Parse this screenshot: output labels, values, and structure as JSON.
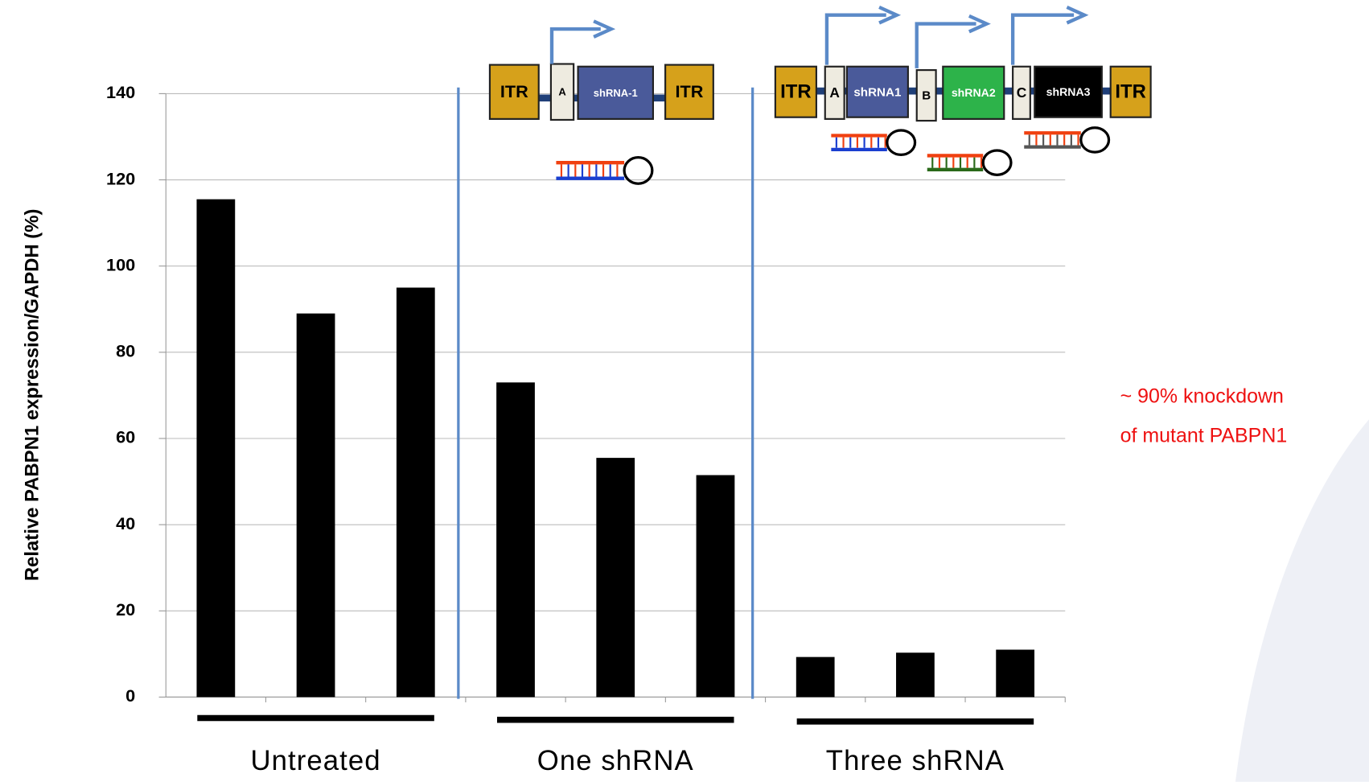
{
  "chart_data": {
    "type": "bar",
    "y_label": "Relative PABPN1 expression/GAPDH (%)",
    "categories": [
      null,
      null,
      null,
      null,
      null,
      null,
      null,
      null,
      null
    ],
    "values": [
      115.5,
      89,
      95,
      73,
      55.5,
      51.5,
      9.3,
      10.3,
      11
    ],
    "color": "#000000",
    "groups": [
      "Untreated",
      "One shRNA",
      "Three shRNA"
    ],
    "ylim": [
      0,
      140
    ],
    "yticks": [
      0,
      20,
      40,
      60,
      80,
      100,
      120,
      140
    ],
    "grid": true,
    "annotation": [
      "~ 90% knockdown",
      "of mutant PABPN1"
    ],
    "constructs": [
      [
        "ITR",
        "A",
        "shRNA-1",
        "ITR"
      ],
      [
        "ITR",
        "A",
        "shRNA1",
        "B",
        "shRNA2",
        "C",
        "shRNA3",
        "ITR"
      ]
    ]
  }
}
